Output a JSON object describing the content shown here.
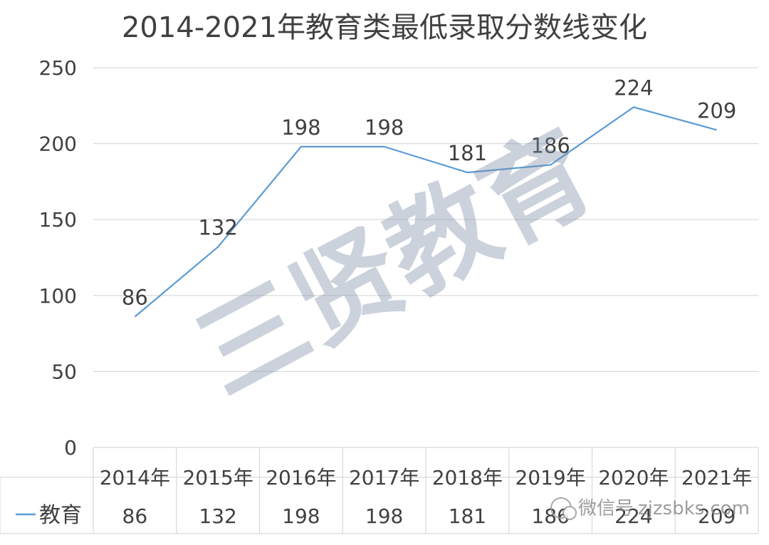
{
  "chart_data": {
    "type": "line",
    "title": "2014-2021年教育类最低录取分数线变化",
    "categories": [
      "2014年",
      "2015年",
      "2016年",
      "2017年",
      "2018年",
      "2019年",
      "2020年",
      "2021年"
    ],
    "series": [
      {
        "name": "教育",
        "values": [
          86,
          132,
          198,
          198,
          181,
          186,
          224,
          209
        ]
      }
    ],
    "yticks": [
      0,
      50,
      100,
      150,
      200,
      250
    ],
    "ylim": [
      0,
      250
    ],
    "grid": true,
    "legend": "data-table-left",
    "data_table": true,
    "colors": {
      "line": "#5b9bd5",
      "grid": "#d9d9d9",
      "text": "#404040"
    }
  },
  "watermark": {
    "text": "三贤教育",
    "weixin_label": "微信号",
    "weixin_id": "zjzsbks.com"
  }
}
